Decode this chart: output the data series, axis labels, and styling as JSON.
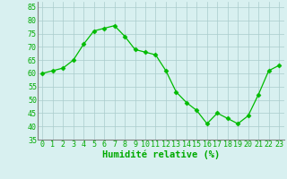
{
  "x": [
    0,
    1,
    2,
    3,
    4,
    5,
    6,
    7,
    8,
    9,
    10,
    11,
    12,
    13,
    14,
    15,
    16,
    17,
    18,
    19,
    20,
    21,
    22,
    23
  ],
  "y": [
    60,
    61,
    62,
    65,
    71,
    76,
    77,
    78,
    74,
    69,
    68,
    67,
    61,
    53,
    49,
    46,
    41,
    45,
    43,
    41,
    44,
    52,
    61,
    63
  ],
  "line_color": "#00bb00",
  "marker": "D",
  "marker_size": 2.5,
  "bg_color": "#d8f0f0",
  "grid_color": "#aacccc",
  "xlabel": "Humidité relative (%)",
  "xlabel_color": "#00aa00",
  "xlabel_fontsize": 7.5,
  "tick_color": "#00aa00",
  "tick_fontsize": 6,
  "ylim": [
    35,
    87
  ],
  "yticks": [
    35,
    40,
    45,
    50,
    55,
    60,
    65,
    70,
    75,
    80,
    85
  ],
  "xlim": [
    -0.5,
    23.5
  ]
}
